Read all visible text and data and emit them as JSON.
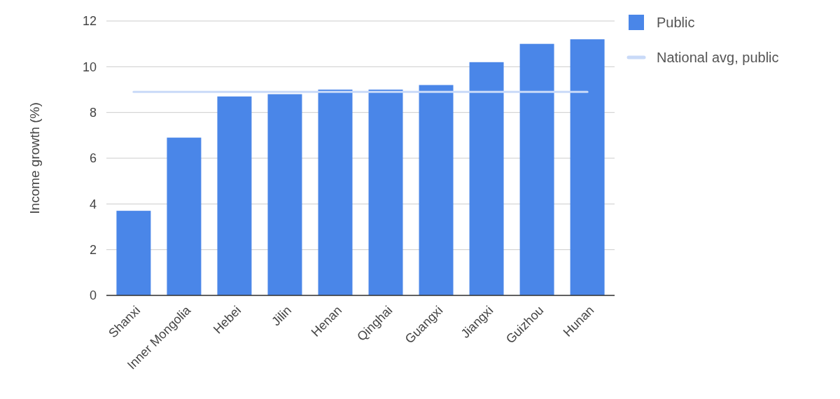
{
  "chart_data": {
    "type": "bar",
    "ylabel": "Income growth (%)",
    "categories": [
      "Shanxi",
      "Inner Mongolia",
      "Hebei",
      "Jilin",
      "Henan",
      "Qinghai",
      "Guangxi",
      "Jiangxi",
      "Guizhou",
      "Hunan"
    ],
    "series": [
      {
        "name": "Public",
        "color": "#4a86e8",
        "values": [
          3.7,
          6.9,
          8.7,
          8.8,
          9.0,
          9.0,
          9.2,
          10.2,
          11.0,
          11.2
        ]
      },
      {
        "name": "National avg, public",
        "type": "line",
        "color": "#c9daf8",
        "values": [
          8.9,
          8.9,
          8.9,
          8.9,
          8.9,
          8.9,
          8.9,
          8.9,
          8.9,
          8.9
        ]
      }
    ],
    "ylim": [
      0,
      12
    ],
    "yticks": [
      0,
      2,
      4,
      6,
      8,
      10,
      12
    ],
    "grid": "y",
    "legend": "right"
  }
}
